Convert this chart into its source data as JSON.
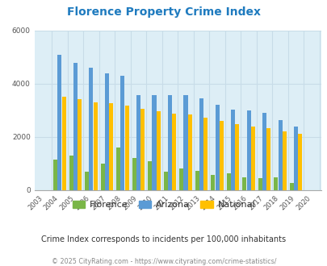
{
  "title": "Florence Property Crime Index",
  "years": [
    2003,
    2004,
    2005,
    2006,
    2007,
    2008,
    2009,
    2010,
    2011,
    2012,
    2013,
    2014,
    2015,
    2016,
    2017,
    2018,
    2019,
    2020
  ],
  "florence": [
    0,
    1150,
    1300,
    700,
    1000,
    1600,
    1200,
    1100,
    700,
    820,
    720,
    580,
    620,
    490,
    450,
    480,
    270,
    0
  ],
  "arizona": [
    0,
    5100,
    4800,
    4600,
    4380,
    4300,
    3580,
    3580,
    3580,
    3580,
    3450,
    3200,
    3030,
    2990,
    2900,
    2650,
    2400,
    0
  ],
  "national": [
    0,
    3520,
    3420,
    3290,
    3260,
    3170,
    3050,
    2970,
    2880,
    2860,
    2740,
    2590,
    2470,
    2390,
    2330,
    2210,
    2110,
    0
  ],
  "florence_color": "#7ab648",
  "arizona_color": "#5b9bd5",
  "national_color": "#ffc000",
  "background_color": "#ddeef6",
  "ylim": [
    0,
    6000
  ],
  "yticks": [
    0,
    2000,
    4000,
    6000
  ],
  "subtitle": "Crime Index corresponds to incidents per 100,000 inhabitants",
  "footer": "© 2025 CityRating.com - https://www.cityrating.com/crime-statistics/",
  "title_color": "#1f7bbf",
  "subtitle_color": "#333333",
  "footer_color": "#888888",
  "grid_color": "#c8dce8"
}
